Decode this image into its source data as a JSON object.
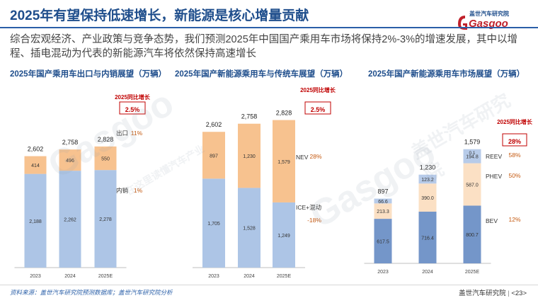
{
  "header": {
    "title": "2025年有望保持低速增长，新能源是核心增量贡献",
    "subtitle": "综合宏观经济、产业政策与竞争态势，我们预测2025年中国国产乘用车市场将保持2%-3%的增速发展，其中以增程、插电混动为代表的新能源汽车将依然保持高速增长"
  },
  "logo": {
    "text": "盖世汽车研究院",
    "brand": "Gasgoo"
  },
  "colors": {
    "title": "#1f4e8c",
    "blue_bar": "#adc5e6",
    "orange_bar": "#f7c28f",
    "light_orange": "#fbe0c4",
    "dark_blue": "#7496c9",
    "mid_blue": "#b7cbe9",
    "red": "#c00000"
  },
  "chart_data": [
    {
      "type": "bar",
      "stacked": true,
      "title": "2025年国产乘用车出口与内销展望（万辆）",
      "categories": [
        "2023",
        "2024",
        "2025E"
      ],
      "totals": [
        "2,602",
        "2,758",
        "2,828"
      ],
      "series": [
        {
          "name": "内销",
          "values": [
            2188,
            2262,
            2278
          ],
          "labels": [
            "2,188",
            "2,262",
            "2,278"
          ],
          "growth": "1%"
        },
        {
          "name": "出口",
          "values": [
            414,
            496,
            550
          ],
          "labels": [
            "414",
            "496",
            "550"
          ],
          "growth": "11%"
        }
      ],
      "badge_label": "2025同比增长",
      "badge_value": "2.5%"
    },
    {
      "type": "bar",
      "stacked": true,
      "title": "2025年国产新能源乘用车与传统车展望（万辆）",
      "categories": [
        "2023",
        "2024",
        "2025E"
      ],
      "totals": [
        "2,602",
        "2,758",
        "2,828"
      ],
      "series": [
        {
          "name": "ICE+混动",
          "values": [
            1705,
            1528,
            1249
          ],
          "labels": [
            "1,705",
            "1,528",
            "1,249"
          ],
          "growth": "-18%"
        },
        {
          "name": "NEV",
          "values": [
            897,
            1230,
            1579
          ],
          "labels": [
            "897",
            "1,230",
            "1,579"
          ],
          "growth": "28%"
        }
      ],
      "badge_label": "2025同比增长",
      "badge_value": "2.5%"
    },
    {
      "type": "bar",
      "stacked": true,
      "title": "2025年国产新能源乘用车市场展望（万辆）",
      "categories": [
        "2023",
        "2024",
        "2025E"
      ],
      "totals": [
        "897",
        "1,230",
        "1,579"
      ],
      "series": [
        {
          "name": "BEV",
          "values": [
            617.5,
            716.4,
            800.7
          ],
          "labels": [
            "617.5",
            "716.4",
            "800.7"
          ],
          "growth": "12%"
        },
        {
          "name": "PHEV",
          "values": [
            213.3,
            390.0,
            587.0
          ],
          "labels": [
            "213.3",
            "390.0",
            "587.0"
          ],
          "growth": "50%"
        },
        {
          "name": "REEV",
          "values": [
            66.6,
            123.2,
            194.8
          ],
          "labels": [
            "66.6",
            "123.2",
            "194.8"
          ],
          "growth": "58%"
        }
      ],
      "extra_label": "0.1",
      "badge_label": "2025同比增长",
      "badge_value": "28%"
    }
  ],
  "watermark": {
    "brand": "Gasgoo",
    "cn": "盖世汽车研究院",
    "sub": "在这里读懂汽车产业"
  },
  "footer": {
    "source": "资料来源：盖世汽车研究院预测数据库；盖世汽车研究院分析",
    "org": "盖世汽车研究院",
    "page": "<23>"
  }
}
